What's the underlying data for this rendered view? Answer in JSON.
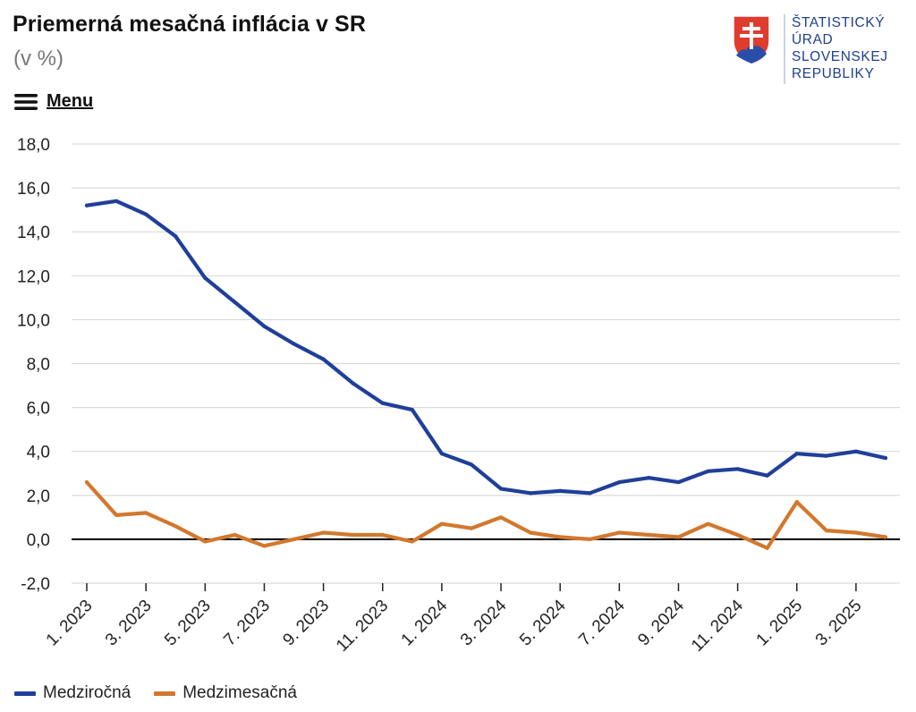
{
  "header": {
    "title": "Priemerná mesačná inflácia v SR",
    "subtitle": "(v %)",
    "menu_label": "Menu"
  },
  "logo": {
    "lines": [
      "ŠTATISTICKÝ",
      "ÚRAD",
      "SLOVENSKEJ",
      "REPUBLIKY"
    ],
    "icon": "slovak-coat-of-arms-icon"
  },
  "colors": {
    "series1": "#1f3f99",
    "series2": "#d2782d",
    "grid": "#d9d9d9",
    "zero_line": "#000000",
    "axis_text": "#222222"
  },
  "chart_data": {
    "type": "line",
    "title": "Priemerná mesačná inflácia v SR",
    "ylabel": "(v %)",
    "xlabel": "",
    "ylim": [
      -2,
      18
    ],
    "yticks": [
      "-2,0",
      "0,0",
      "2,0",
      "4,0",
      "6,0",
      "8,0",
      "10,0",
      "12,0",
      "14,0",
      "16,0",
      "18,0"
    ],
    "xtick_labels": [
      "1. 2023",
      "3. 2023",
      "5. 2023",
      "7. 2023",
      "9. 2023",
      "11. 2023",
      "1. 2024",
      "3. 2024",
      "5. 2024",
      "7. 2024",
      "9. 2024",
      "11. 2024",
      "1. 2025",
      "3. 2025"
    ],
    "categories": [
      "1. 2023",
      "2. 2023",
      "3. 2023",
      "4. 2023",
      "5. 2023",
      "6. 2023",
      "7. 2023",
      "8. 2023",
      "9. 2023",
      "10. 2023",
      "11. 2023",
      "12. 2023",
      "1. 2024",
      "2. 2024",
      "3. 2024",
      "4. 2024",
      "5. 2024",
      "6. 2024",
      "7. 2024",
      "8. 2024",
      "9. 2024",
      "10. 2024",
      "11. 2024",
      "12. 2024",
      "1. 2025",
      "2. 2025",
      "3. 2025",
      "4. 2025"
    ],
    "grid": true,
    "legend_position": "bottom-left",
    "series": [
      {
        "name": "Medziročná",
        "values": [
          15.2,
          15.4,
          14.8,
          13.8,
          11.9,
          10.8,
          9.7,
          8.9,
          8.2,
          7.1,
          6.2,
          5.9,
          3.9,
          3.4,
          2.3,
          2.1,
          2.2,
          2.1,
          2.6,
          2.8,
          2.6,
          3.1,
          3.2,
          2.9,
          3.9,
          3.8,
          4.0,
          3.7
        ]
      },
      {
        "name": "Medzimesačná",
        "values": [
          2.6,
          1.1,
          1.2,
          0.6,
          -0.1,
          0.2,
          -0.3,
          0.0,
          0.3,
          0.2,
          0.2,
          -0.1,
          0.7,
          0.5,
          1.0,
          0.3,
          0.1,
          0.0,
          0.3,
          0.2,
          0.1,
          0.7,
          0.2,
          -0.4,
          1.7,
          0.4,
          0.3,
          0.1
        ]
      }
    ]
  }
}
